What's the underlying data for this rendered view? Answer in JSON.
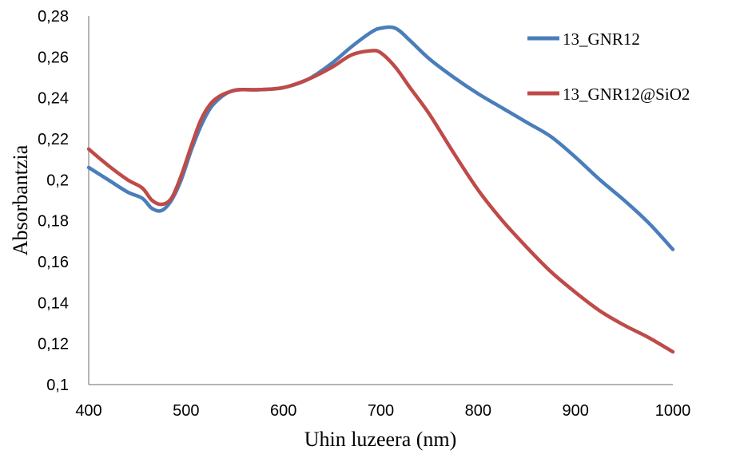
{
  "chart_data": {
    "type": "line",
    "title": "",
    "xlabel": "Uhin luzeera (nm)",
    "ylabel": "Absorbantzia",
    "xlim": [
      400,
      1000
    ],
    "ylim": [
      0.1,
      0.28
    ],
    "xticks": [
      400,
      500,
      600,
      700,
      800,
      900,
      1000
    ],
    "xtick_labels": [
      "400",
      "500",
      "600",
      "700",
      "800",
      "900",
      "1000"
    ],
    "yticks": [
      0.1,
      0.12,
      0.14,
      0.16,
      0.18,
      0.2,
      0.22,
      0.24,
      0.26,
      0.28
    ],
    "ytick_labels": [
      "0,1",
      "0,12",
      "0,14",
      "0,16",
      "0,18",
      "0,2",
      "0,22",
      "0,24",
      "0,26",
      "0,28"
    ],
    "grid": false,
    "legend": "top-right",
    "series": [
      {
        "name": "13_GNR12",
        "color": "#4a7ebb",
        "x": [
          400,
          420,
          440,
          455,
          465,
          475,
          485,
          495,
          505,
          515,
          525,
          535,
          545,
          555,
          575,
          600,
          625,
          650,
          670,
          690,
          700,
          715,
          730,
          750,
          775,
          800,
          825,
          850,
          875,
          900,
          925,
          950,
          975,
          1000
        ],
        "y": [
          0.206,
          0.2,
          0.194,
          0.191,
          0.186,
          0.185,
          0.19,
          0.2,
          0.214,
          0.226,
          0.235,
          0.24,
          0.243,
          0.244,
          0.244,
          0.245,
          0.249,
          0.257,
          0.265,
          0.272,
          0.274,
          0.274,
          0.268,
          0.259,
          0.25,
          0.242,
          0.235,
          0.228,
          0.221,
          0.211,
          0.2,
          0.19,
          0.179,
          0.166
        ]
      },
      {
        "name": "13_GNR12@SiO2",
        "color": "#be4b48",
        "x": [
          400,
          420,
          440,
          455,
          465,
          475,
          485,
          495,
          505,
          515,
          525,
          535,
          545,
          555,
          575,
          600,
          625,
          650,
          670,
          690,
          700,
          715,
          730,
          750,
          775,
          800,
          825,
          850,
          875,
          900,
          925,
          950,
          975,
          1000
        ],
        "y": [
          0.215,
          0.207,
          0.2,
          0.196,
          0.19,
          0.188,
          0.191,
          0.202,
          0.216,
          0.229,
          0.237,
          0.241,
          0.243,
          0.244,
          0.244,
          0.245,
          0.249,
          0.255,
          0.261,
          0.263,
          0.262,
          0.255,
          0.245,
          0.232,
          0.213,
          0.195,
          0.18,
          0.167,
          0.155,
          0.145,
          0.136,
          0.129,
          0.123,
          0.116
        ]
      }
    ]
  }
}
